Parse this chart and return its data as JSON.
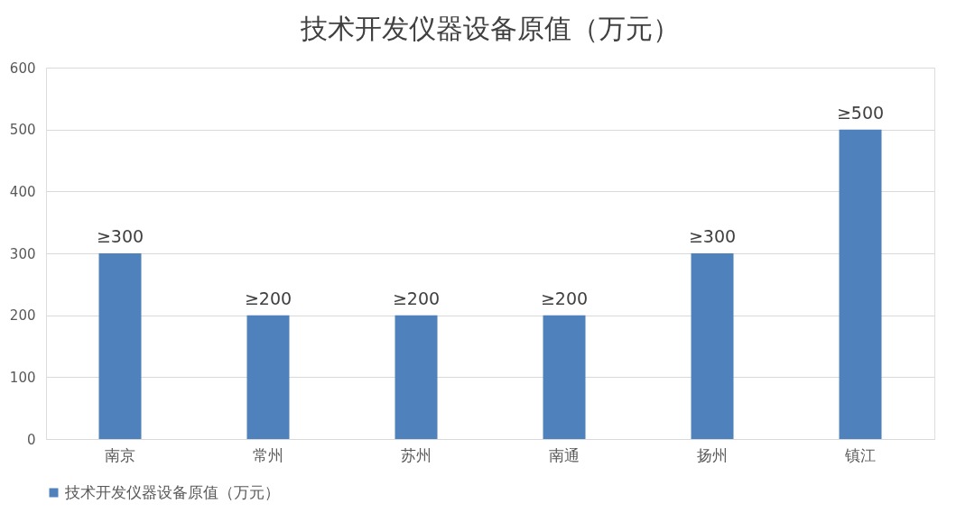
{
  "chart_data": {
    "type": "bar",
    "title": "技术开发仪器设备原值（万元）",
    "categories": [
      "南京",
      "常州",
      "苏州",
      "南通",
      "扬州",
      "镇江"
    ],
    "series": [
      {
        "name": "技术开发仪器设备原值（万元）",
        "color": "#4f81bd",
        "values": [
          300,
          200,
          200,
          200,
          300,
          500
        ],
        "value_labels": [
          "≥300",
          "≥200",
          "≥200",
          "≥200",
          "≥300",
          "≥500"
        ]
      }
    ],
    "ylim": [
      0,
      600
    ],
    "yticks": [
      0,
      100,
      200,
      300,
      400,
      500,
      600
    ],
    "grid": "y",
    "legend": "bottom"
  }
}
